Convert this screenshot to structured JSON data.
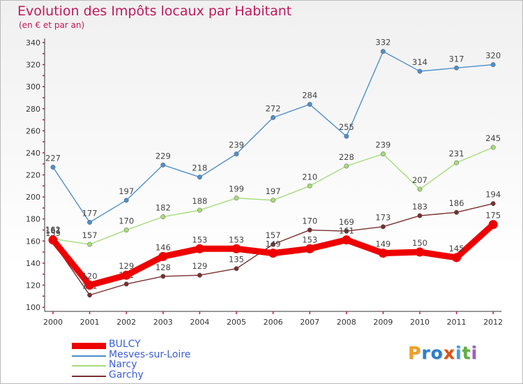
{
  "title": "Evolution des Impôts locaux par Habitant",
  "subtitle": "(en € et par an)",
  "logo": {
    "letters": [
      "P",
      "r",
      "o",
      "x",
      "i",
      "t",
      "i"
    ],
    "colors": [
      "#f0a020",
      "#2a7fd0",
      "#2a7fd0",
      "#e05010",
      "#3aa0e0",
      "#60b040",
      "#a060c0"
    ]
  },
  "chart_data": {
    "type": "line",
    "x": [
      "2000",
      "2001",
      "2002",
      "2003",
      "2004",
      "2005",
      "2006",
      "2007",
      "2008",
      "2009",
      "2010",
      "2011",
      "2012"
    ],
    "ylim": [
      100,
      340
    ],
    "yticks": [
      "100",
      "120",
      "140",
      "160",
      "180",
      "200",
      "220",
      "240",
      "260",
      "280",
      "300",
      "320",
      "340"
    ],
    "grid": false,
    "legend_position": "bottom-left",
    "series": [
      {
        "name": "Mesves-sur-Loire",
        "color": "#4f8fc9",
        "values": [
          227,
          177,
          197,
          229,
          218,
          239,
          272,
          284,
          255,
          332,
          314,
          317,
          320
        ],
        "labels": [
          "227",
          "177",
          "197",
          "229",
          "218",
          "239",
          "272",
          "284",
          "255",
          "332",
          "314",
          "317",
          "320"
        ]
      },
      {
        "name": "Narcy",
        "color": "#a6dc7a",
        "values": [
          162,
          157,
          170,
          182,
          188,
          199,
          197,
          210,
          228,
          239,
          207,
          231,
          245
        ],
        "labels": [
          "162",
          "157",
          "170",
          "182",
          "188",
          "199",
          "197",
          "210",
          "228",
          "239",
          "207",
          "231",
          "245"
        ]
      },
      {
        "name": "Garchy",
        "color": "#7a2f2f",
        "values": [
          159,
          111,
          121,
          128,
          129,
          135,
          157,
          170,
          169,
          173,
          183,
          186,
          194
        ],
        "labels": [
          "159",
          "111",
          "121",
          "128",
          "129",
          "135",
          "157",
          "170",
          "169",
          "173",
          "183",
          "186",
          "194"
        ]
      },
      {
        "name": "BULCY",
        "color": "#ee0000",
        "values": [
          161,
          120,
          129,
          146,
          153,
          153,
          149,
          153,
          161,
          149,
          150,
          145,
          175
        ],
        "labels": [
          "161",
          "120",
          "129",
          "146",
          "153",
          "153",
          "149",
          "153",
          "161",
          "149",
          "150",
          "145",
          "175"
        ]
      }
    ],
    "legend_order": [
      "BULCY",
      "Mesves-sur-Loire",
      "Narcy",
      "Garchy"
    ]
  }
}
